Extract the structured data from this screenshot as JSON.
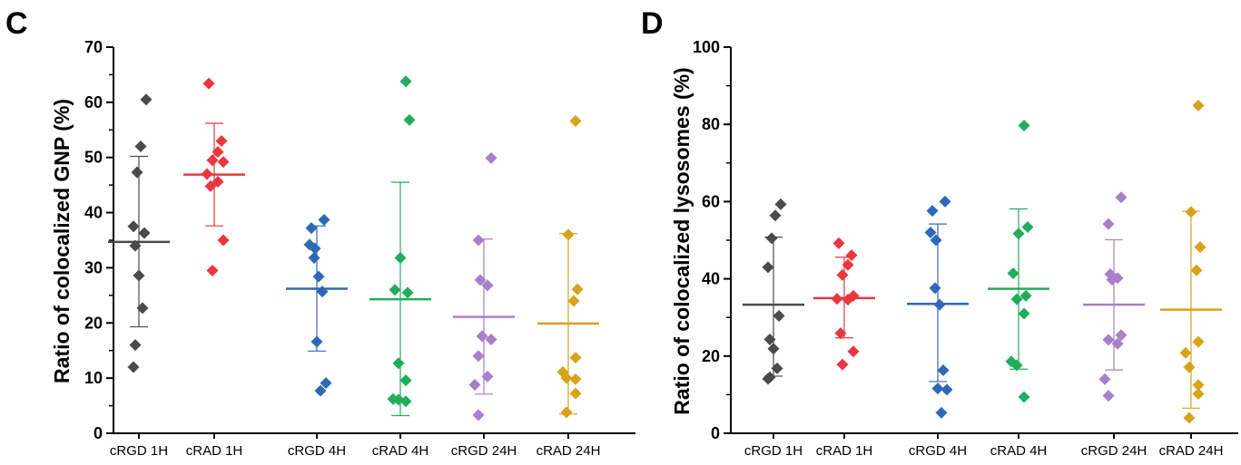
{
  "chart_data": [
    {
      "type": "scatter",
      "panel_label": "C",
      "title": "",
      "xlabel": "",
      "ylabel": "Ratio of colocalized GNP (%)",
      "ylim": [
        0,
        70
      ],
      "yticks": [
        0,
        10,
        20,
        30,
        40,
        50,
        60,
        70
      ],
      "grid": false,
      "categories": [
        "cRGD 1H",
        "cRAD 1H",
        "cRGD 4H",
        "cRAD 4H",
        "cRGD 24H",
        "cRAD 24H"
      ],
      "series": [
        {
          "color": "#4a4a4a",
          "points": [
            60.5,
            52,
            47.3,
            37.5,
            36.3,
            34,
            28.6,
            22.7,
            16,
            12
          ],
          "mean": 34.7,
          "err_low": 19.3,
          "err_high": 50.2
        },
        {
          "color": "#e8383d",
          "points": [
            63.4,
            53,
            51,
            49.5,
            49.2,
            47,
            45.6,
            44.8,
            35,
            29.5
          ],
          "mean": 46.9,
          "err_low": 37.6,
          "err_high": 56.2
        },
        {
          "color": "#3068b8",
          "points": [
            38.7,
            37.2,
            34.2,
            33.5,
            31.8,
            28.4,
            25.7,
            16.6,
            9.1,
            7.7
          ],
          "mean": 26.2,
          "err_low": 14.9,
          "err_high": 37.6
        },
        {
          "color": "#22ad5c",
          "points": [
            63.8,
            56.8,
            31.8,
            26,
            25.5,
            12.7,
            9.6,
            6.2,
            6.1,
            5.8
          ],
          "mean": 24.3,
          "err_low": 3.2,
          "err_high": 45.5
        },
        {
          "color": "#a87fc9",
          "points": [
            49.9,
            35,
            27.8,
            26.8,
            17.6,
            17,
            14,
            10.3,
            8.8,
            3.3
          ],
          "mean": 21.1,
          "err_low": 7.1,
          "err_high": 35.2
        },
        {
          "color": "#d9a21b",
          "points": [
            56.6,
            36,
            26.1,
            24,
            13.7,
            11.1,
            10,
            9.8,
            7.2,
            3.8
          ],
          "mean": 19.9,
          "err_low": 3.5,
          "err_high": 36.2
        }
      ]
    },
    {
      "type": "scatter",
      "panel_label": "D",
      "title": "",
      "xlabel": "",
      "ylabel": "Ratio of colocalized lysosomes (%)",
      "ylim": [
        0,
        100
      ],
      "yticks": [
        0,
        20,
        40,
        60,
        80,
        100
      ],
      "grid": false,
      "categories": [
        "cRGD 1H",
        "cRAD 1H",
        "cRGD 4H",
        "cRAD 4H",
        "cRGD 24H",
        "cRAD 24H"
      ],
      "series": [
        {
          "color": "#4a4a4a",
          "points": [
            59.3,
            56.4,
            50.5,
            43,
            30.4,
            24.3,
            21.9,
            16.8,
            14.5,
            14.1
          ],
          "mean": 33.3,
          "err_low": 14.8,
          "err_high": 50.8
        },
        {
          "color": "#e8383d",
          "points": [
            49.2,
            46.1,
            43.6,
            41,
            35.6,
            34.8,
            34.6,
            25.9,
            21.2,
            17.8
          ],
          "mean": 35,
          "err_low": 24.7,
          "err_high": 45.6
        },
        {
          "color": "#3068b8",
          "points": [
            60,
            57.6,
            52,
            50,
            37.6,
            33.3,
            16.3,
            11.6,
            11.3,
            5.3
          ],
          "mean": 33.5,
          "err_low": 13.4,
          "err_high": 54.2
        },
        {
          "color": "#22ad5c",
          "points": [
            79.7,
            53.4,
            51.7,
            41.4,
            35.6,
            34.7,
            31,
            18.6,
            17.6,
            9.4
          ],
          "mean": 37.4,
          "err_low": 16.6,
          "err_high": 58.1
        },
        {
          "color": "#a87fc9",
          "points": [
            61.1,
            54.2,
            41.2,
            40.2,
            39.8,
            25.4,
            24.2,
            23.2,
            14,
            9.7
          ],
          "mean": 33.3,
          "err_low": 16.4,
          "err_high": 50.1
        },
        {
          "color": "#d9a21b",
          "points": [
            84.9,
            57.3,
            48.2,
            42.2,
            23.7,
            20.8,
            17.1,
            12.5,
            10.2,
            4
          ],
          "mean": 32,
          "err_low": 6.5,
          "err_high": 57.5
        }
      ]
    }
  ]
}
